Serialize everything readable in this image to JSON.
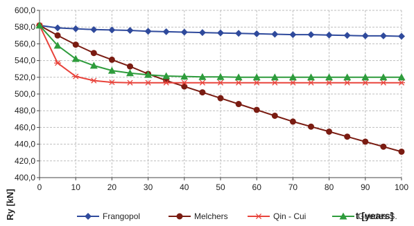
{
  "chart_data": {
    "type": "line",
    "x": [
      0,
      5,
      10,
      15,
      20,
      25,
      30,
      35,
      40,
      45,
      50,
      55,
      60,
      65,
      70,
      75,
      80,
      85,
      90,
      95,
      100
    ],
    "xlabel": "t [years]",
    "ylabel": "Ry [kN]",
    "xlim": [
      0,
      100
    ],
    "ylim": [
      400,
      600
    ],
    "x_ticks": [
      "0",
      "10",
      "20",
      "30",
      "40",
      "50",
      "60",
      "70",
      "80",
      "90",
      "100"
    ],
    "y_ticks": [
      "400,0",
      "420,0",
      "440,0",
      "460,0",
      "480,0",
      "500,0",
      "520,0",
      "540,0",
      "560,0",
      "580,0",
      "600,0"
    ],
    "grid": "on",
    "legend_position": "bottom",
    "series": [
      {
        "name": "Frangopol",
        "color": "#2f4a9c",
        "marker": "diamond",
        "values": [
          582,
          579,
          578,
          577,
          576.5,
          576,
          575,
          574.5,
          574,
          573.5,
          573,
          572.5,
          572,
          571.5,
          571,
          571,
          570.5,
          570,
          569.5,
          569.5,
          569
        ]
      },
      {
        "name": "Melchers",
        "color": "#7a1c12",
        "marker": "circle",
        "values": [
          582,
          570,
          559,
          549,
          541,
          533,
          524,
          516,
          509,
          502,
          495,
          488,
          481,
          474,
          467,
          461,
          455,
          449,
          443,
          437,
          431
        ]
      },
      {
        "name": "Qin - Cui",
        "color": "#e8433b",
        "marker": "asterisk",
        "values": [
          582,
          537,
          521,
          516,
          514,
          513.5,
          513.5,
          513.5,
          513.5,
          513.5,
          513.5,
          513.5,
          513.5,
          513.5,
          513.5,
          513.5,
          513.5,
          513.5,
          513.5,
          513.5,
          513.5
        ]
      },
      {
        "name": "Guedes S.",
        "color": "#2e9c3c",
        "marker": "triangle",
        "values": [
          582,
          558,
          542,
          534,
          528,
          525,
          523,
          521.5,
          521,
          520.5,
          520.5,
          520,
          520,
          520,
          520,
          520,
          520,
          520,
          520,
          520,
          520
        ]
      }
    ]
  }
}
